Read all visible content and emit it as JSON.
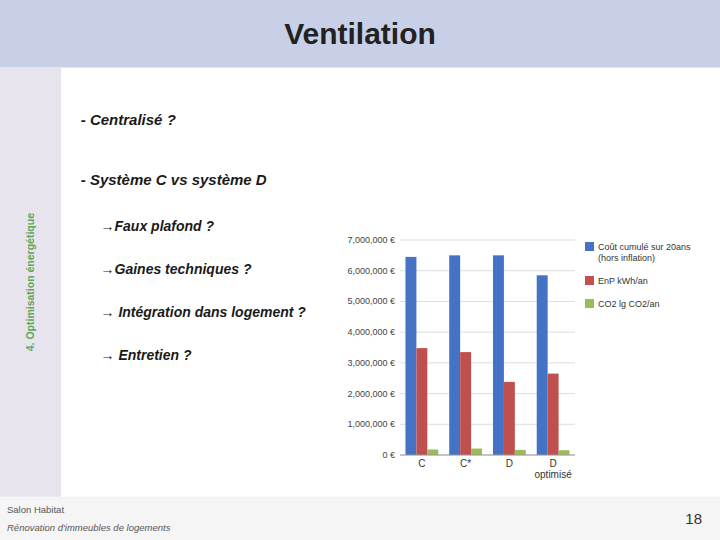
{
  "page": {
    "title": "Ventilation",
    "side_label": "4. Optimisation énergétique",
    "bullets": [
      "-  Centralisé ?",
      "-  Système C  vs système D",
      "→Faux plafond ?",
      "→Gaines techniques ?",
      "→  Intégration dans logement ?",
      "→  Entretien ?"
    ],
    "footer": [
      "Salon Habitat",
      "Rénovation d'immeubles de logements"
    ],
    "page_number": "18"
  },
  "chart_data": {
    "type": "bar",
    "categories": [
      "C",
      "C*",
      "D",
      "D\noptimisé"
    ],
    "series": [
      {
        "name": "Coût cumulé sur 20ans\n(hors inflation)",
        "color": "#4472C4",
        "values": [
          6450000,
          6500000,
          6500000,
          5850000
        ]
      },
      {
        "name": "EnP kWh/an",
        "color": "#C0504D",
        "values": [
          3480000,
          3350000,
          2380000,
          2650000
        ]
      },
      {
        "name": "CO2 lg CO2/an",
        "color": "#9BBB59",
        "values": [
          180000,
          210000,
          165000,
          155000
        ]
      }
    ],
    "ylim": [
      0,
      7000000
    ],
    "yticks": [
      {
        "value": 0,
        "label": "0 €"
      },
      {
        "value": 1000000,
        "label": "1,000,000 €"
      },
      {
        "value": 2000000,
        "label": "2,000,000 €"
      },
      {
        "value": 3000000,
        "label": "3,000,000 €"
      },
      {
        "value": 4000000,
        "label": "4,000,000 €"
      },
      {
        "value": 5000000,
        "label": "5,000,000 €"
      },
      {
        "value": 6000000,
        "label": "6,000,000 €"
      },
      {
        "value": 7000000,
        "label": "7,000,000 €"
      }
    ],
    "grid": true,
    "legend": "right"
  }
}
